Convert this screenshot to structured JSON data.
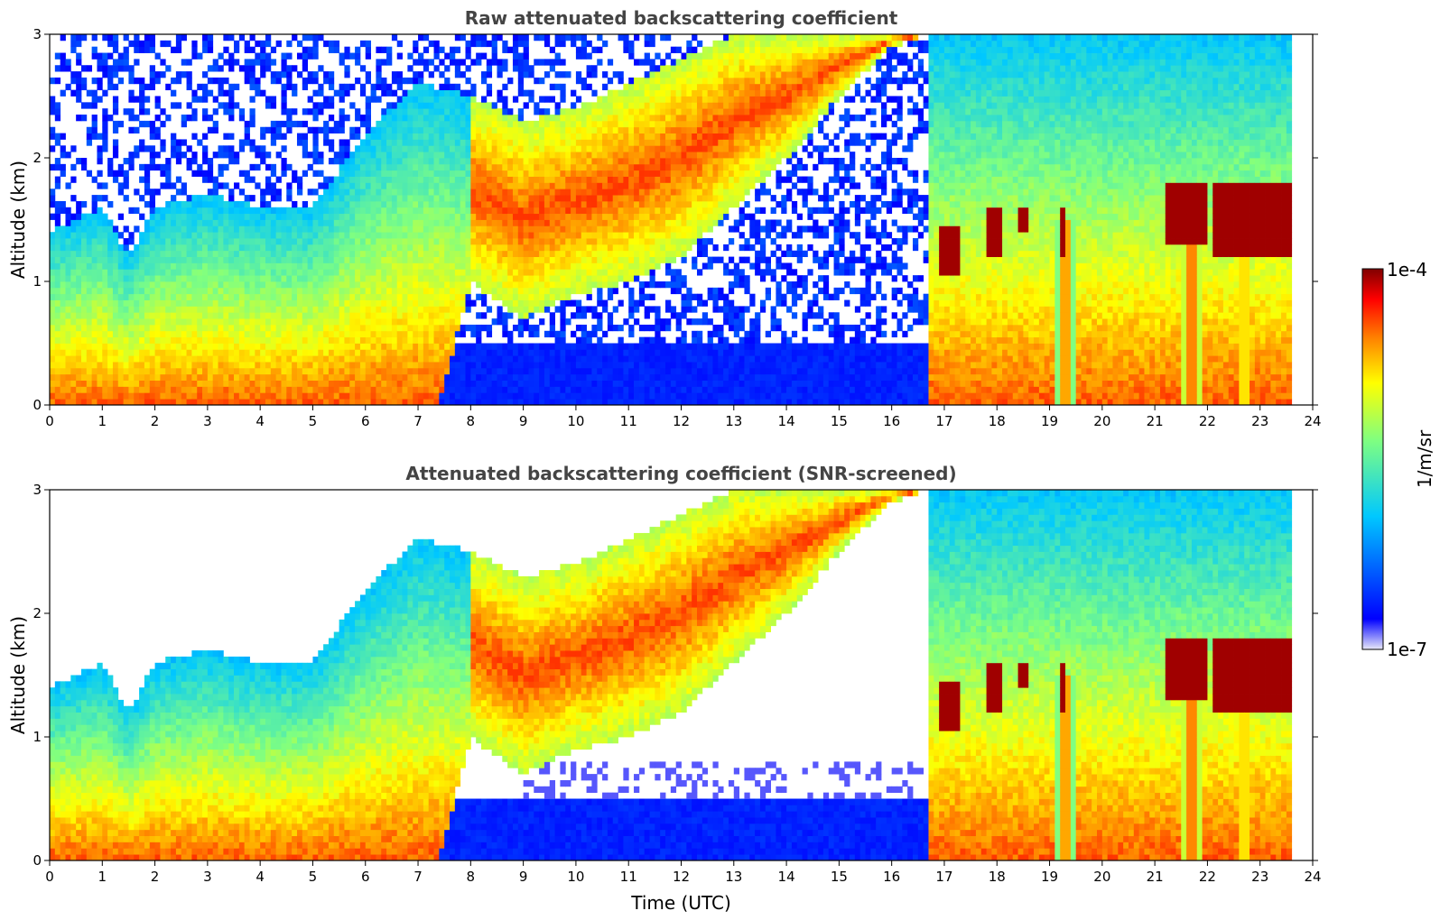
{
  "chart_data": [
    {
      "type": "heatmap",
      "title": "Raw attenuated backscattering coefficient",
      "xlabel": "",
      "ylabel": "Altitude (km)",
      "xlim": [
        0,
        24
      ],
      "ylim": [
        0,
        3
      ],
      "xticks": [
        "0",
        "1",
        "2",
        "3",
        "4",
        "5",
        "6",
        "7",
        "8",
        "9",
        "10",
        "11",
        "12",
        "13",
        "14",
        "15",
        "16",
        "17",
        "18",
        "19",
        "20",
        "21",
        "22",
        "23",
        "24"
      ],
      "yticks": [
        "0",
        "1",
        "2",
        "3"
      ],
      "data_end_time": 23.6,
      "screened": false
    },
    {
      "type": "heatmap",
      "title": "Attenuated backscattering coefficient (SNR-screened)",
      "xlabel": "Time (UTC)",
      "ylabel": "Altitude (km)",
      "xlim": [
        0,
        24
      ],
      "ylim": [
        0,
        3
      ],
      "xticks": [
        "0",
        "1",
        "2",
        "3",
        "4",
        "5",
        "6",
        "7",
        "8",
        "9",
        "10",
        "11",
        "12",
        "13",
        "14",
        "15",
        "16",
        "17",
        "18",
        "19",
        "20",
        "21",
        "22",
        "23",
        "24"
      ],
      "yticks": [
        "0",
        "1",
        "2",
        "3"
      ],
      "data_end_time": 23.6,
      "screened": true
    }
  ],
  "colorbar": {
    "label": "1/m/sr",
    "min_label": "1e-7",
    "max_label": "1e-4",
    "colormap": "jet",
    "colors": [
      "#e8e8f8",
      "#0000ff",
      "#00c8ff",
      "#80ff80",
      "#ffff00",
      "#ff8000",
      "#ff0000",
      "#800000"
    ]
  },
  "features": {
    "mixed_layer_top_km": [
      [
        0,
        1.4
      ],
      [
        0.5,
        1.5
      ],
      [
        1,
        1.6
      ],
      [
        1.5,
        1.2
      ],
      [
        2,
        1.6
      ],
      [
        3,
        1.7
      ],
      [
        4,
        1.6
      ],
      [
        5,
        1.6
      ],
      [
        6,
        2.2
      ],
      [
        7,
        2.6
      ],
      [
        8,
        2.5
      ],
      [
        9,
        2.3
      ],
      [
        10,
        2.4
      ],
      [
        11,
        2.6
      ],
      [
        12,
        2.8
      ],
      [
        13,
        3.0
      ],
      [
        14,
        3.0
      ],
      [
        15,
        3.0
      ],
      [
        16,
        3.0
      ],
      [
        16.7,
        3.0
      ]
    ],
    "layer_base_km": [
      [
        7.4,
        0
      ],
      [
        8,
        1.0
      ],
      [
        9,
        0.7
      ],
      [
        10,
        0.9
      ],
      [
        11,
        1.0
      ],
      [
        12,
        1.2
      ],
      [
        13,
        1.6
      ],
      [
        14,
        2.0
      ],
      [
        15,
        2.5
      ],
      [
        16,
        2.9
      ],
      [
        16.7,
        3.0
      ]
    ],
    "elevated_layers": [
      {
        "t0": 16.9,
        "t1": 17.3,
        "z": 1.25,
        "dz": 0.2
      },
      {
        "t0": 17.8,
        "t1": 18.1,
        "z": 1.4,
        "dz": 0.2
      },
      {
        "t0": 18.4,
        "t1": 18.6,
        "z": 1.5,
        "dz": 0.1
      },
      {
        "t0": 19.2,
        "t1": 19.3,
        "z": 1.4,
        "dz": 0.2
      },
      {
        "t0": 21.2,
        "t1": 22.0,
        "z": 1.55,
        "dz": 0.25
      },
      {
        "t0": 22.1,
        "t1": 23.6,
        "z": 1.5,
        "dz": 0.3
      }
    ],
    "plumes": [
      {
        "t": 19.3,
        "w": 0.15
      },
      {
        "t": 21.7,
        "w": 0.2
      },
      {
        "t": 22.7,
        "w": 0.1
      }
    ]
  }
}
